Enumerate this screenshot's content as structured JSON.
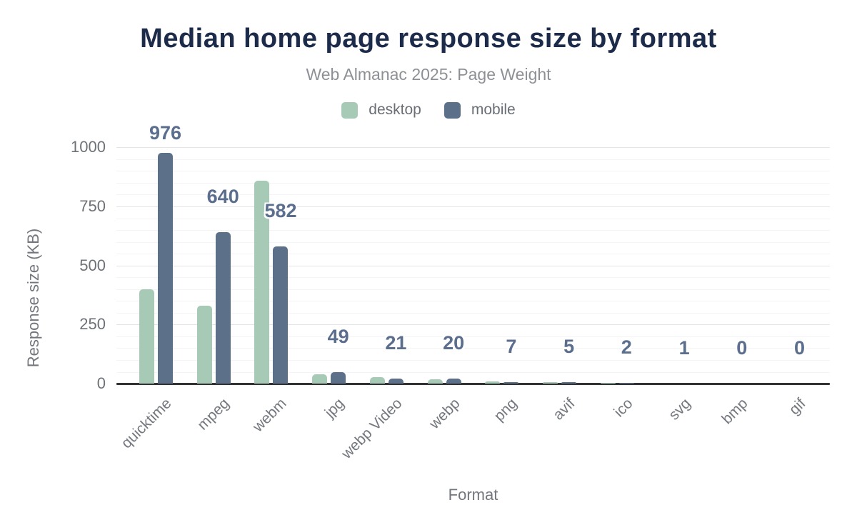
{
  "header": {
    "title": "Median home page response size by format",
    "subtitle": "Web Almanac 2025: Page Weight"
  },
  "axes": {
    "y_title": "Response size (KB)",
    "x_title": "Format",
    "y_ticks": [
      0,
      250,
      500,
      750,
      1000
    ],
    "y_minor_step": 50
  },
  "colors": {
    "desktop": "#a7cab7",
    "mobile": "#5d7089",
    "title": "#1c2b49",
    "data_label": "#5b6e8d",
    "axis_text": "#73777d",
    "baseline": "#303234"
  },
  "chart_data": {
    "type": "bar",
    "title": "Median home page response size by format",
    "subtitle": "Web Almanac 2025: Page Weight",
    "categories": [
      "quicktime",
      "mpeg",
      "webm",
      "jpg",
      "webp Video",
      "webp",
      "png",
      "avif",
      "ico",
      "svg",
      "bmp",
      "gif"
    ],
    "series": [
      {
        "name": "desktop",
        "color": "#a7cab7",
        "values": [
          400,
          330,
          860,
          40,
          28,
          18,
          8,
          7,
          2,
          1,
          0,
          0
        ]
      },
      {
        "name": "mobile",
        "color": "#5d7089",
        "values": [
          976,
          640,
          582,
          49,
          21,
          20,
          7,
          5,
          2,
          1,
          0,
          0
        ]
      }
    ],
    "data_labels": {
      "series": "mobile",
      "values": [
        976,
        640,
        582,
        49,
        21,
        20,
        7,
        5,
        2,
        1,
        0,
        0
      ]
    },
    "xlabel": "Format",
    "ylabel": "Response size (KB)",
    "ylim": [
      0,
      1000
    ],
    "grid": true,
    "legend_position": "top"
  }
}
